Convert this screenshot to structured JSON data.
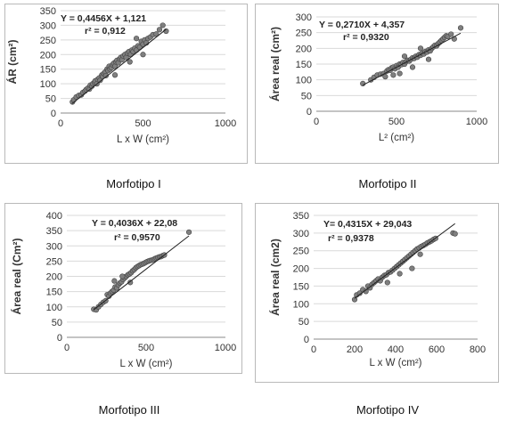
{
  "chart_data": [
    {
      "type": "scatter",
      "caption": "Morfotipo I",
      "xlabel": "L x W  (cm²)",
      "ylabel": "ÁR (cm²)",
      "xlim": [
        0,
        1000
      ],
      "ylim": [
        0,
        350
      ],
      "xticks": [
        0,
        500,
        1000
      ],
      "yticks": [
        0,
        50,
        100,
        150,
        200,
        250,
        300,
        350
      ],
      "equation": "Y = 0,4456X + 1,121",
      "r2": "r² = 0,912",
      "trendline": {
        "slope": 0.4456,
        "intercept": 1.121,
        "x_range": [
          70,
          640
        ]
      },
      "points": [
        [
          72,
          38
        ],
        [
          80,
          45
        ],
        [
          95,
          55
        ],
        [
          110,
          60
        ],
        [
          125,
          62
        ],
        [
          135,
          70
        ],
        [
          148,
          75
        ],
        [
          155,
          80
        ],
        [
          165,
          85
        ],
        [
          175,
          82
        ],
        [
          180,
          95
        ],
        [
          190,
          92
        ],
        [
          195,
          100
        ],
        [
          205,
          105
        ],
        [
          210,
          110
        ],
        [
          220,
          100
        ],
        [
          225,
          115
        ],
        [
          235,
          120
        ],
        [
          240,
          112
        ],
        [
          250,
          130
        ],
        [
          255,
          125
        ],
        [
          262,
          135
        ],
        [
          270,
          140
        ],
        [
          275,
          128
        ],
        [
          282,
          150
        ],
        [
          288,
          145
        ],
        [
          295,
          160
        ],
        [
          300,
          150
        ],
        [
          308,
          155
        ],
        [
          315,
          165
        ],
        [
          322,
          170
        ],
        [
          330,
          160
        ],
        [
          335,
          175
        ],
        [
          342,
          180
        ],
        [
          350,
          172
        ],
        [
          358,
          185
        ],
        [
          365,
          190
        ],
        [
          372,
          182
        ],
        [
          380,
          195
        ],
        [
          390,
          200
        ],
        [
          398,
          190
        ],
        [
          405,
          205
        ],
        [
          415,
          210
        ],
        [
          425,
          200
        ],
        [
          432,
          215
        ],
        [
          440,
          210
        ],
        [
          450,
          222
        ],
        [
          460,
          215
        ],
        [
          470,
          230
        ],
        [
          480,
          225
        ],
        [
          490,
          245
        ],
        [
          500,
          235
        ],
        [
          510,
          250
        ],
        [
          520,
          240
        ],
        [
          530,
          255
        ],
        [
          545,
          260
        ],
        [
          560,
          268
        ],
        [
          580,
          270
        ],
        [
          600,
          285
        ],
        [
          620,
          300
        ],
        [
          640,
          280
        ],
        [
          330,
          130
        ],
        [
          420,
          175
        ],
        [
          500,
          200
        ],
        [
          460,
          255
        ]
      ]
    },
    {
      "type": "scatter",
      "caption": "Morfotipo II",
      "xlabel": "L² (cm²)",
      "ylabel": "Área real (cm²)",
      "xlim": [
        0,
        1000
      ],
      "ylim": [
        0,
        300
      ],
      "xticks": [
        0,
        500,
        1000
      ],
      "yticks": [
        0,
        50,
        100,
        150,
        200,
        250,
        300
      ],
      "equation": "Y = 0,2710X + 4,357",
      "r2": "r² = 0,9320",
      "trendline": {
        "slope": 0.271,
        "intercept": 4.357,
        "x_range": [
          290,
          900
        ]
      },
      "points": [
        [
          290,
          88
        ],
        [
          340,
          100
        ],
        [
          360,
          108
        ],
        [
          380,
          115
        ],
        [
          400,
          118
        ],
        [
          420,
          120
        ],
        [
          440,
          128
        ],
        [
          450,
          132
        ],
        [
          460,
          130
        ],
        [
          470,
          138
        ],
        [
          480,
          140
        ],
        [
          490,
          135
        ],
        [
          500,
          145
        ],
        [
          510,
          140
        ],
        [
          520,
          150
        ],
        [
          530,
          148
        ],
        [
          540,
          155
        ],
        [
          550,
          150
        ],
        [
          560,
          158
        ],
        [
          570,
          162
        ],
        [
          580,
          160
        ],
        [
          590,
          165
        ],
        [
          600,
          170
        ],
        [
          610,
          168
        ],
        [
          620,
          175
        ],
        [
          630,
          172
        ],
        [
          640,
          180
        ],
        [
          650,
          178
        ],
        [
          660,
          185
        ],
        [
          670,
          182
        ],
        [
          680,
          190
        ],
        [
          690,
          188
        ],
        [
          700,
          195
        ],
        [
          710,
          192
        ],
        [
          720,
          200
        ],
        [
          730,
          205
        ],
        [
          740,
          210
        ],
        [
          750,
          208
        ],
        [
          760,
          215
        ],
        [
          770,
          220
        ],
        [
          780,
          225
        ],
        [
          790,
          230
        ],
        [
          800,
          235
        ],
        [
          810,
          240
        ],
        [
          820,
          238
        ],
        [
          840,
          245
        ],
        [
          860,
          230
        ],
        [
          900,
          265
        ],
        [
          520,
          120
        ],
        [
          600,
          140
        ],
        [
          700,
          165
        ],
        [
          650,
          200
        ],
        [
          550,
          175
        ],
        [
          480,
          115
        ],
        [
          430,
          110
        ]
      ]
    },
    {
      "type": "scatter",
      "caption": "Morfotipo III",
      "xlabel": "L x W   (cm²)",
      "ylabel": "Área real (Cm²)",
      "xlim": [
        0,
        1000
      ],
      "ylim": [
        0,
        400
      ],
      "xticks": [
        0,
        500,
        1000
      ],
      "yticks": [
        0,
        50,
        100,
        150,
        200,
        250,
        300,
        350,
        400
      ],
      "equation": "Y = 0,4036X + 22,08",
      "r2": "r² = 0,9570",
      "trendline": {
        "slope": 0.4036,
        "intercept": 22.08,
        "x_range": [
          170,
          770
        ]
      },
      "points": [
        [
          170,
          92
        ],
        [
          185,
          90
        ],
        [
          200,
          100
        ],
        [
          215,
          108
        ],
        [
          230,
          115
        ],
        [
          245,
          120
        ],
        [
          255,
          140
        ],
        [
          265,
          135
        ],
        [
          275,
          145
        ],
        [
          285,
          150
        ],
        [
          295,
          155
        ],
        [
          305,
          165
        ],
        [
          315,
          162
        ],
        [
          325,
          172
        ],
        [
          335,
          178
        ],
        [
          345,
          182
        ],
        [
          355,
          190
        ],
        [
          365,
          195
        ],
        [
          375,
          200
        ],
        [
          385,
          205
        ],
        [
          395,
          208
        ],
        [
          405,
          212
        ],
        [
          415,
          218
        ],
        [
          425,
          222
        ],
        [
          435,
          228
        ],
        [
          445,
          232
        ],
        [
          455,
          235
        ],
        [
          465,
          238
        ],
        [
          475,
          240
        ],
        [
          485,
          242
        ],
        [
          495,
          245
        ],
        [
          505,
          248
        ],
        [
          515,
          250
        ],
        [
          525,
          252
        ],
        [
          535,
          253
        ],
        [
          545,
          255
        ],
        [
          555,
          258
        ],
        [
          565,
          260
        ],
        [
          575,
          262
        ],
        [
          585,
          264
        ],
        [
          595,
          265
        ],
        [
          605,
          268
        ],
        [
          615,
          270
        ],
        [
          770,
          345
        ],
        [
          300,
          185
        ],
        [
          350,
          200
        ],
        [
          400,
          180
        ]
      ]
    },
    {
      "type": "scatter",
      "caption": "Morfotipo IV",
      "xlabel": "L x W  (cm²)",
      "ylabel": "Área real (cm2)",
      "xlim": [
        0,
        800
      ],
      "ylim": [
        0,
        350
      ],
      "xticks": [
        0,
        200,
        400,
        600,
        800
      ],
      "yticks": [
        0,
        50,
        100,
        150,
        200,
        250,
        300,
        350
      ],
      "equation": "Y= 0,4315X + 29,043",
      "r2": "r² = 0,9378",
      "trendline": {
        "slope": 0.4315,
        "intercept": 29.043,
        "x_range": [
          200,
          690
        ]
      },
      "points": [
        [
          200,
          112
        ],
        [
          210,
          125
        ],
        [
          225,
          130
        ],
        [
          240,
          140
        ],
        [
          255,
          135
        ],
        [
          265,
          150
        ],
        [
          275,
          145
        ],
        [
          285,
          155
        ],
        [
          295,
          160
        ],
        [
          305,
          165
        ],
        [
          315,
          170
        ],
        [
          325,
          165
        ],
        [
          335,
          175
        ],
        [
          345,
          180
        ],
        [
          355,
          182
        ],
        [
          365,
          188
        ],
        [
          375,
          190
        ],
        [
          385,
          195
        ],
        [
          395,
          200
        ],
        [
          405,
          205
        ],
        [
          415,
          210
        ],
        [
          425,
          215
        ],
        [
          435,
          220
        ],
        [
          445,
          225
        ],
        [
          455,
          230
        ],
        [
          465,
          235
        ],
        [
          475,
          240
        ],
        [
          485,
          245
        ],
        [
          495,
          250
        ],
        [
          505,
          255
        ],
        [
          515,
          258
        ],
        [
          525,
          262
        ],
        [
          535,
          265
        ],
        [
          545,
          268
        ],
        [
          555,
          272
        ],
        [
          565,
          275
        ],
        [
          575,
          278
        ],
        [
          585,
          282
        ],
        [
          595,
          285
        ],
        [
          680,
          300
        ],
        [
          690,
          298
        ],
        [
          360,
          160
        ],
        [
          420,
          185
        ],
        [
          480,
          200
        ],
        [
          520,
          240
        ]
      ]
    }
  ]
}
